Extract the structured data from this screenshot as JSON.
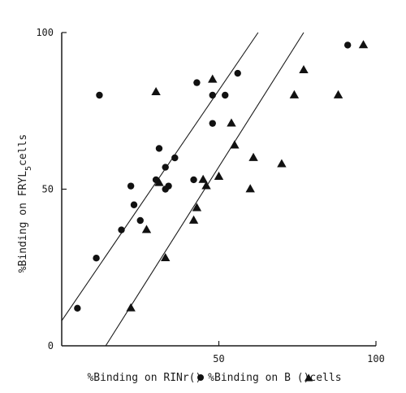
{
  "chart_data": {
    "type": "scatter",
    "xlabel_left": "%Binding on RINr(",
    "xlabel_mid": ") %Binding on B (",
    "xlabel_right": ")cells",
    "ylabel_pre": "%Binding on FRYL",
    "ylabel_sub": "5",
    "ylabel_post": "cells",
    "xlim": [
      0,
      100
    ],
    "ylim": [
      0,
      100
    ],
    "x_ticks": [
      0,
      50,
      100
    ],
    "y_ticks": [
      0,
      50,
      100
    ],
    "x_tick_labels": [
      "50",
      "100"
    ],
    "y_tick_labels": [
      "0",
      "50",
      "100"
    ],
    "grid": false,
    "series": [
      {
        "marker": "circle",
        "points": [
          [
            5,
            12
          ],
          [
            11,
            28
          ],
          [
            12,
            80
          ],
          [
            19,
            37
          ],
          [
            22,
            51
          ],
          [
            23,
            45
          ],
          [
            25,
            40
          ],
          [
            30,
            53
          ],
          [
            31,
            63
          ],
          [
            33,
            57
          ],
          [
            33,
            50
          ],
          [
            34,
            51
          ],
          [
            36,
            60
          ],
          [
            42,
            53
          ],
          [
            43,
            84
          ],
          [
            48,
            80
          ],
          [
            48,
            71
          ],
          [
            52,
            80
          ],
          [
            56,
            87
          ],
          [
            91,
            96
          ]
        ],
        "fit_line": {
          "x": [
            0,
            62.5
          ],
          "y": [
            8,
            100
          ]
        }
      },
      {
        "marker": "triangle",
        "points": [
          [
            22,
            12
          ],
          [
            27,
            37
          ],
          [
            30,
            81
          ],
          [
            31,
            52
          ],
          [
            33,
            28
          ],
          [
            42,
            40
          ],
          [
            43,
            44
          ],
          [
            45,
            53
          ],
          [
            46,
            51
          ],
          [
            48,
            85
          ],
          [
            50,
            54
          ],
          [
            54,
            71
          ],
          [
            55,
            64
          ],
          [
            60,
            50
          ],
          [
            61,
            60
          ],
          [
            70,
            58
          ],
          [
            74,
            80
          ],
          [
            77,
            88
          ],
          [
            88,
            80
          ],
          [
            96,
            96
          ]
        ],
        "fit_line": {
          "x": [
            14,
            77
          ],
          "y": [
            0,
            100
          ]
        }
      }
    ]
  }
}
